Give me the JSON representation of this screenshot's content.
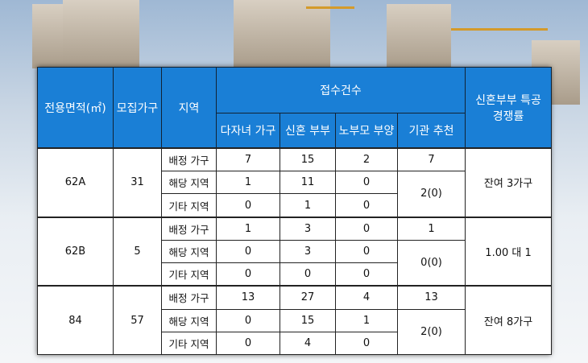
{
  "headers": {
    "area": "전용면적(㎡)",
    "units": "모집가구",
    "region": "지역",
    "applications": "접수건수",
    "sub": [
      "다자녀 가구",
      "신혼 부부",
      "노부모 부양",
      "기관 추천"
    ],
    "rate_line1": "신혼부부 특공",
    "rate_line2": "경쟁률"
  },
  "groups": [
    {
      "area": "62A",
      "units": "31",
      "rate": "잔여 3가구",
      "agency_alloc": "7",
      "agency_apps": "2(0)",
      "rows": [
        {
          "region": "배정 가구",
          "multi": "7",
          "newly": "15",
          "parents": "2"
        },
        {
          "region": "해당 지역",
          "multi": "1",
          "newly": "11",
          "parents": "0"
        },
        {
          "region": "기타 지역",
          "multi": "0",
          "newly": "1",
          "parents": "0"
        }
      ]
    },
    {
      "area": "62B",
      "units": "5",
      "rate": "1.00 대 1",
      "agency_alloc": "1",
      "agency_apps": "0(0)",
      "rows": [
        {
          "region": "배정 가구",
          "multi": "1",
          "newly": "3",
          "parents": "0"
        },
        {
          "region": "해당 지역",
          "multi": "0",
          "newly": "3",
          "parents": "0"
        },
        {
          "region": "기타 지역",
          "multi": "0",
          "newly": "0",
          "parents": "0"
        }
      ]
    },
    {
      "area": "84",
      "units": "57",
      "rate": "잔여 8가구",
      "agency_alloc": "13",
      "agency_apps": "2(0)",
      "rows": [
        {
          "region": "배정 가구",
          "multi": "13",
          "newly": "27",
          "parents": "4"
        },
        {
          "region": "해당 지역",
          "multi": "0",
          "newly": "15",
          "parents": "1"
        },
        {
          "region": "기타 지역",
          "multi": "0",
          "newly": "4",
          "parents": "0"
        }
      ]
    }
  ],
  "colors": {
    "header_bg": "#1a7fd6",
    "header_text": "#ffffff"
  }
}
